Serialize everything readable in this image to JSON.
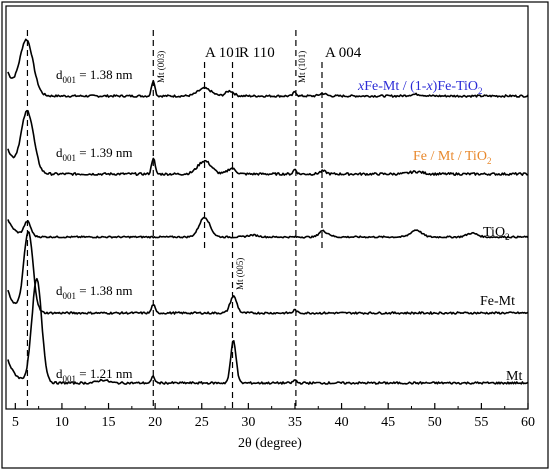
{
  "chart_data": {
    "type": "line",
    "xlabel": "2θ (degree)",
    "xlim": [
      4,
      60
    ],
    "x_ticks": [
      5,
      10,
      15,
      20,
      25,
      30,
      35,
      40,
      45,
      50,
      55,
      60
    ],
    "reference_lines": [
      {
        "x": 6.3,
        "label": ""
      },
      {
        "x": 19.8,
        "label": "Mt (003)"
      },
      {
        "x": 25.3,
        "label": "A 101"
      },
      {
        "x": 28.3,
        "label": "R 110"
      },
      {
        "x": 35.1,
        "label": "Mt (101)"
      },
      {
        "x": 37.9,
        "label": "A 004"
      }
    ],
    "series": [
      {
        "name": "xFe-Mt / (1-x)Fe-TiO2",
        "color": "#2b2bd6",
        "d001": "d001 = 1.38 nm",
        "baseline": 0.0,
        "peaks": [
          [
            6.2,
            1.3,
            1.0
          ],
          [
            19.8,
            0.38,
            0.25
          ],
          [
            25.3,
            0.18,
            1.0
          ],
          [
            28.0,
            0.12,
            0.6
          ],
          [
            35.0,
            0.1,
            0.25
          ],
          [
            38.0,
            0.06,
            0.5
          ],
          [
            48.0,
            0.04,
            1.0
          ]
        ]
      },
      {
        "name": "Fe / Mt / TiO2",
        "color": "#e8882c",
        "d001": "d001 = 1.39 nm",
        "baseline": 0.0,
        "peaks": [
          [
            6.3,
            1.3,
            0.95
          ],
          [
            19.8,
            0.35,
            0.25
          ],
          [
            25.3,
            0.28,
            1.0
          ],
          [
            28.2,
            0.12,
            0.6
          ],
          [
            35.0,
            0.1,
            0.25
          ],
          [
            38.0,
            0.06,
            0.5
          ],
          [
            48.0,
            0.05,
            1.0
          ]
        ]
      },
      {
        "name": "TiO2",
        "color": "#000000",
        "d001": "",
        "baseline": 0.0,
        "peaks": [
          [
            6.3,
            0.45,
            0.5
          ],
          [
            25.3,
            0.62,
            0.8
          ],
          [
            37.9,
            0.18,
            0.5
          ],
          [
            38.6,
            0.08,
            0.5
          ],
          [
            48.0,
            0.22,
            0.8
          ],
          [
            54.0,
            0.12,
            0.8
          ],
          [
            30.5,
            0.06,
            0.8
          ]
        ]
      },
      {
        "name": "Fe-Mt",
        "color": "#000000",
        "d001": "d001 = 1.38 nm",
        "baseline": 0.0,
        "peaks": [
          [
            6.4,
            2.0,
            0.7
          ],
          [
            19.8,
            0.22,
            0.25
          ],
          [
            28.4,
            0.42,
            0.5
          ],
          [
            35.0,
            0.08,
            0.25
          ]
        ]
      },
      {
        "name": "Mt",
        "color": "#000000",
        "d001": "d001 = 1.21 nm",
        "baseline": 0.0,
        "peaks": [
          [
            7.3,
            2.4,
            0.75
          ],
          [
            14.4,
            0.07,
            0.8
          ],
          [
            19.8,
            0.15,
            0.25
          ],
          [
            28.4,
            1.0,
            0.4
          ],
          [
            35.0,
            0.07,
            0.25
          ]
        ]
      }
    ]
  },
  "labels": {
    "ref_A101": "A 101",
    "ref_R110": "R 110",
    "ref_A004": "A 004",
    "ref_Mt003": "Mt (003)",
    "ref_Mt101": "Mt (101)",
    "ref_Mt005": "Mt (005)",
    "xlabel": "2θ (degree)",
    "s1_x1": "x",
    "s1_mid": "Fe-Mt / (1-",
    "s1_x2": "x",
    "s1_end": ")Fe-TiO",
    "s1_sub": "2",
    "s2_main": "Fe / Mt / TiO",
    "s2_sub": "2",
    "s3_main": "TiO",
    "s3_sub": "2",
    "s4": "Fe-Mt",
    "s5": "Mt",
    "d_prefix": "d",
    "d_sub": "001",
    "d1_val": " = 1.38 nm",
    "d2_val": " = 1.39 nm",
    "d3_val": " = 1.38 nm",
    "d4_val": " = 1.21 nm"
  }
}
